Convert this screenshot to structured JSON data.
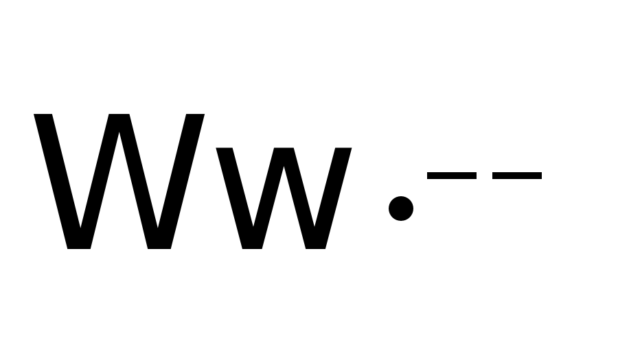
{
  "text": {
    "glyphs": "Ww"
  },
  "symbols": {
    "mark": "dot-dash-dash"
  },
  "colors": {
    "background": "#ffffff",
    "foreground": "#000000"
  }
}
